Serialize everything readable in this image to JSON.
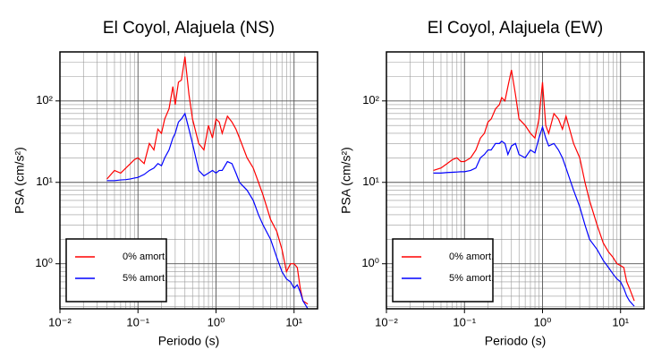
{
  "chart_data": [
    {
      "type": "line",
      "title": "El Coyol, Alajuela (NS)",
      "x_label": "Periodo (s)",
      "y_label": "PSA (cm/s²)",
      "log_x": true,
      "log_y": true,
      "grid": true,
      "xlim": [
        0.01,
        20
      ],
      "ylim": [
        0.28,
        400
      ],
      "xticks": [
        {
          "value": 0.01,
          "label": "10⁻²"
        },
        {
          "value": 0.1,
          "label": "10⁻¹"
        },
        {
          "value": 1,
          "label": "10⁰"
        },
        {
          "value": 10,
          "label": "10¹"
        }
      ],
      "yticks": [
        {
          "value": 1,
          "label": "10⁰"
        },
        {
          "value": 10,
          "label": "10¹"
        },
        {
          "value": 100,
          "label": "10²"
        }
      ],
      "x": [
        0.04,
        0.05,
        0.06,
        0.07,
        0.08,
        0.09,
        0.1,
        0.12,
        0.14,
        0.16,
        0.18,
        0.2,
        0.22,
        0.25,
        0.28,
        0.3,
        0.33,
        0.36,
        0.4,
        0.45,
        0.5,
        0.6,
        0.7,
        0.8,
        0.9,
        1.0,
        1.1,
        1.2,
        1.4,
        1.6,
        1.8,
        2.0,
        2.5,
        3.0,
        3.5,
        4.0,
        5.0,
        6.0,
        7.0,
        8.0,
        9.0,
        10,
        11,
        12,
        13,
        15
      ],
      "series": [
        {
          "name": "0% amort.",
          "color": "#ff0000",
          "values": [
            11,
            14,
            13,
            15,
            17,
            19,
            20,
            17,
            30,
            25,
            45,
            40,
            60,
            80,
            150,
            90,
            170,
            180,
            350,
            120,
            60,
            30,
            25,
            50,
            35,
            60,
            55,
            40,
            65,
            55,
            45,
            35,
            20,
            15,
            10,
            7,
            3.5,
            2.5,
            1.5,
            0.8,
            1.0,
            1.0,
            0.9,
            0.5,
            0.35,
            0.32
          ]
        },
        {
          "name": "5% amort.",
          "color": "#0000ff",
          "values": [
            10.5,
            10.5,
            10.7,
            10.8,
            11,
            11.3,
            11.5,
            12.5,
            14,
            15,
            17,
            16,
            20,
            25,
            35,
            40,
            55,
            60,
            70,
            45,
            30,
            14,
            12,
            13,
            14,
            13,
            14,
            14,
            18,
            17,
            13,
            10,
            8,
            6,
            4,
            3,
            2,
            1.2,
            0.8,
            0.65,
            0.6,
            0.5,
            0.55,
            0.45,
            0.35,
            0.28
          ]
        }
      ]
    },
    {
      "type": "line",
      "title": "El Coyol, Alajuela (EW)",
      "x_label": "Periodo (s)",
      "y_label": "PSA (cm/s²)",
      "log_x": true,
      "log_y": true,
      "grid": true,
      "xlim": [
        0.01,
        20
      ],
      "ylim": [
        0.28,
        400
      ],
      "xticks": [
        {
          "value": 0.01,
          "label": "10⁻²"
        },
        {
          "value": 0.1,
          "label": "10⁻¹"
        },
        {
          "value": 1,
          "label": "10⁰"
        },
        {
          "value": 10,
          "label": "10¹"
        }
      ],
      "yticks": [
        {
          "value": 1,
          "label": "10⁰"
        },
        {
          "value": 10,
          "label": "10¹"
        },
        {
          "value": 100,
          "label": "10²"
        }
      ],
      "x": [
        0.04,
        0.05,
        0.06,
        0.07,
        0.08,
        0.09,
        0.1,
        0.12,
        0.14,
        0.16,
        0.18,
        0.2,
        0.22,
        0.25,
        0.28,
        0.3,
        0.33,
        0.36,
        0.4,
        0.45,
        0.5,
        0.6,
        0.7,
        0.8,
        0.9,
        1.0,
        1.1,
        1.2,
        1.4,
        1.6,
        1.8,
        2.0,
        2.5,
        3.0,
        3.5,
        4.0,
        5.0,
        6.0,
        7.0,
        8.0,
        9.0,
        10,
        11,
        12,
        13,
        15
      ],
      "series": [
        {
          "name": "0% amort.",
          "color": "#ff0000",
          "values": [
            14,
            15,
            17,
            19,
            20,
            18,
            18,
            20,
            25,
            35,
            40,
            55,
            60,
            80,
            90,
            110,
            100,
            150,
            240,
            120,
            60,
            50,
            40,
            35,
            60,
            170,
            50,
            40,
            70,
            60,
            45,
            65,
            30,
            20,
            10,
            6,
            3,
            1.8,
            1.4,
            1.2,
            1.0,
            0.95,
            0.9,
            0.6,
            0.5,
            0.35
          ]
        },
        {
          "name": "5% amort.",
          "color": "#0000ff",
          "values": [
            13,
            13,
            13.2,
            13.3,
            13.4,
            13.5,
            13.5,
            14,
            15,
            20,
            22,
            25,
            25,
            30,
            30,
            32,
            30,
            22,
            28,
            30,
            22,
            20,
            25,
            23,
            35,
            48,
            35,
            28,
            30,
            25,
            20,
            15,
            8,
            5,
            3,
            2,
            1.5,
            1.1,
            0.9,
            0.75,
            0.65,
            0.6,
            0.5,
            0.4,
            0.35,
            0.3
          ]
        }
      ]
    }
  ]
}
